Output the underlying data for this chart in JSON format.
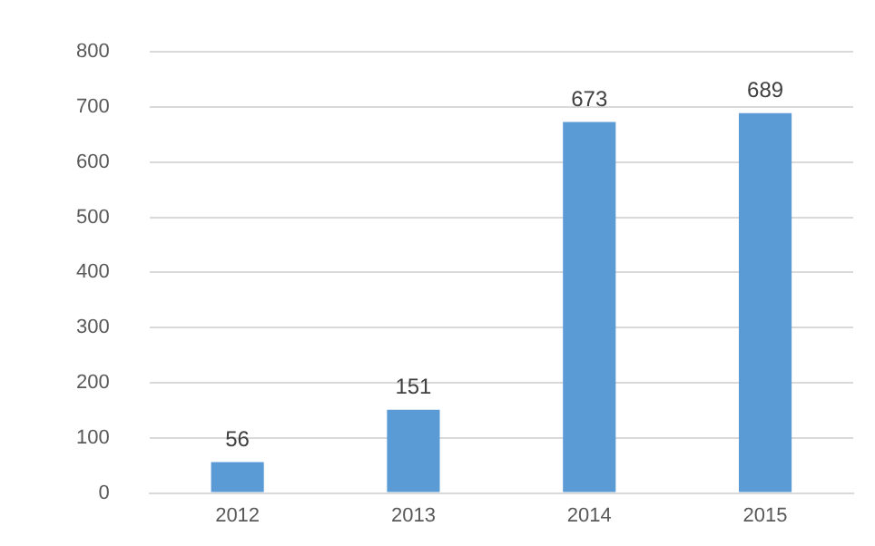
{
  "chart_data": {
    "type": "bar",
    "categories": [
      "2012",
      "2013",
      "2014",
      "2015"
    ],
    "values": [
      56,
      151,
      673,
      689
    ],
    "color": "#5b9bd5",
    "ylim": [
      0,
      800
    ],
    "yticks": [
      0,
      100,
      200,
      300,
      400,
      500,
      600,
      700,
      800
    ],
    "grid": "y",
    "data_labels": true
  }
}
